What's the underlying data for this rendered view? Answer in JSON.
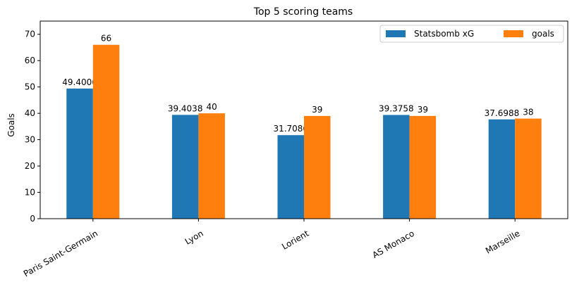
{
  "chart_data": {
    "type": "bar",
    "title": "Top 5 scoring teams",
    "xlabel": "",
    "ylabel": "Goals",
    "ylim": [
      0,
      75
    ],
    "yticks": [
      0,
      10,
      20,
      30,
      40,
      50,
      60,
      70
    ],
    "categories": [
      "Paris Saint-Germain",
      "Lyon",
      "Lorient",
      "AS Monaco",
      "Marseille"
    ],
    "series": [
      {
        "name": "Statsbomb xG",
        "color": "#1f77b4",
        "values": [
          49.4006,
          39.4038,
          31.7086,
          39.3758,
          37.6988
        ],
        "labels": [
          "49.4006",
          "39.4038",
          "31.7086",
          "39.3758",
          "37.6988"
        ]
      },
      {
        "name": "goals",
        "color": "#ff7f0e",
        "values": [
          66,
          40,
          39,
          39,
          38
        ],
        "labels": [
          "66",
          "40",
          "39",
          "39",
          "38"
        ]
      }
    ],
    "legend": "top-right",
    "grid": false
  }
}
